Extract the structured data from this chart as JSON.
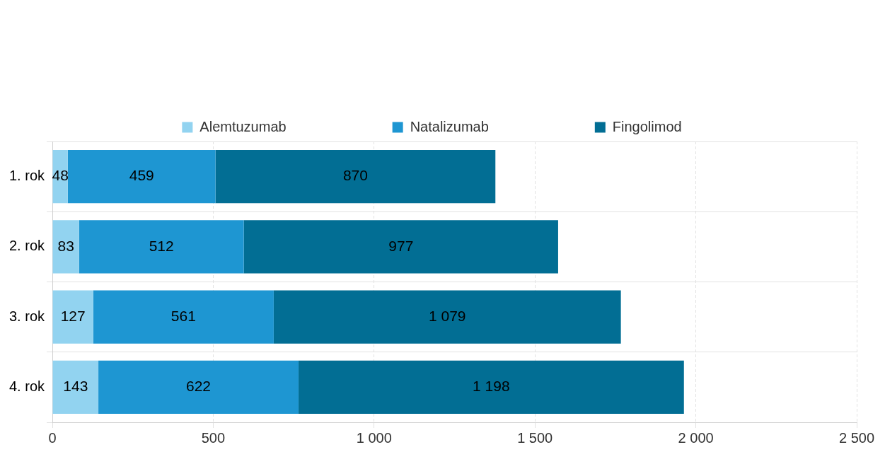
{
  "chart_data": {
    "type": "bar",
    "orientation": "horizontal",
    "stacked": true,
    "categories": [
      "1. rok",
      "2. rok",
      "3. rok",
      "4. rok"
    ],
    "series": [
      {
        "name": "Alemtuzumab",
        "color": "#92d3f0",
        "values": [
          48,
          83,
          127,
          143
        ],
        "value_labels": [
          "48",
          "83",
          "127",
          "143"
        ]
      },
      {
        "name": "Natalizumab",
        "color": "#1e96d2",
        "values": [
          459,
          512,
          561,
          622
        ],
        "value_labels": [
          "459",
          "512",
          "561",
          "622"
        ]
      },
      {
        "name": "Fingolimod",
        "color": "#026e94",
        "values": [
          870,
          977,
          1079,
          1198
        ],
        "value_labels": [
          "870",
          "977",
          "1 079",
          "1 198"
        ]
      }
    ],
    "xlim": [
      0,
      2500
    ],
    "xticks": [
      0,
      500,
      {
        "value": 1000,
        "label": "1 000"
      },
      {
        "value": 1500,
        "label": "1 500"
      },
      {
        "value": 2000,
        "label": "2 000"
      },
      {
        "value": 2500,
        "label": "2 500"
      }
    ],
    "grid": true,
    "legend": "top"
  }
}
